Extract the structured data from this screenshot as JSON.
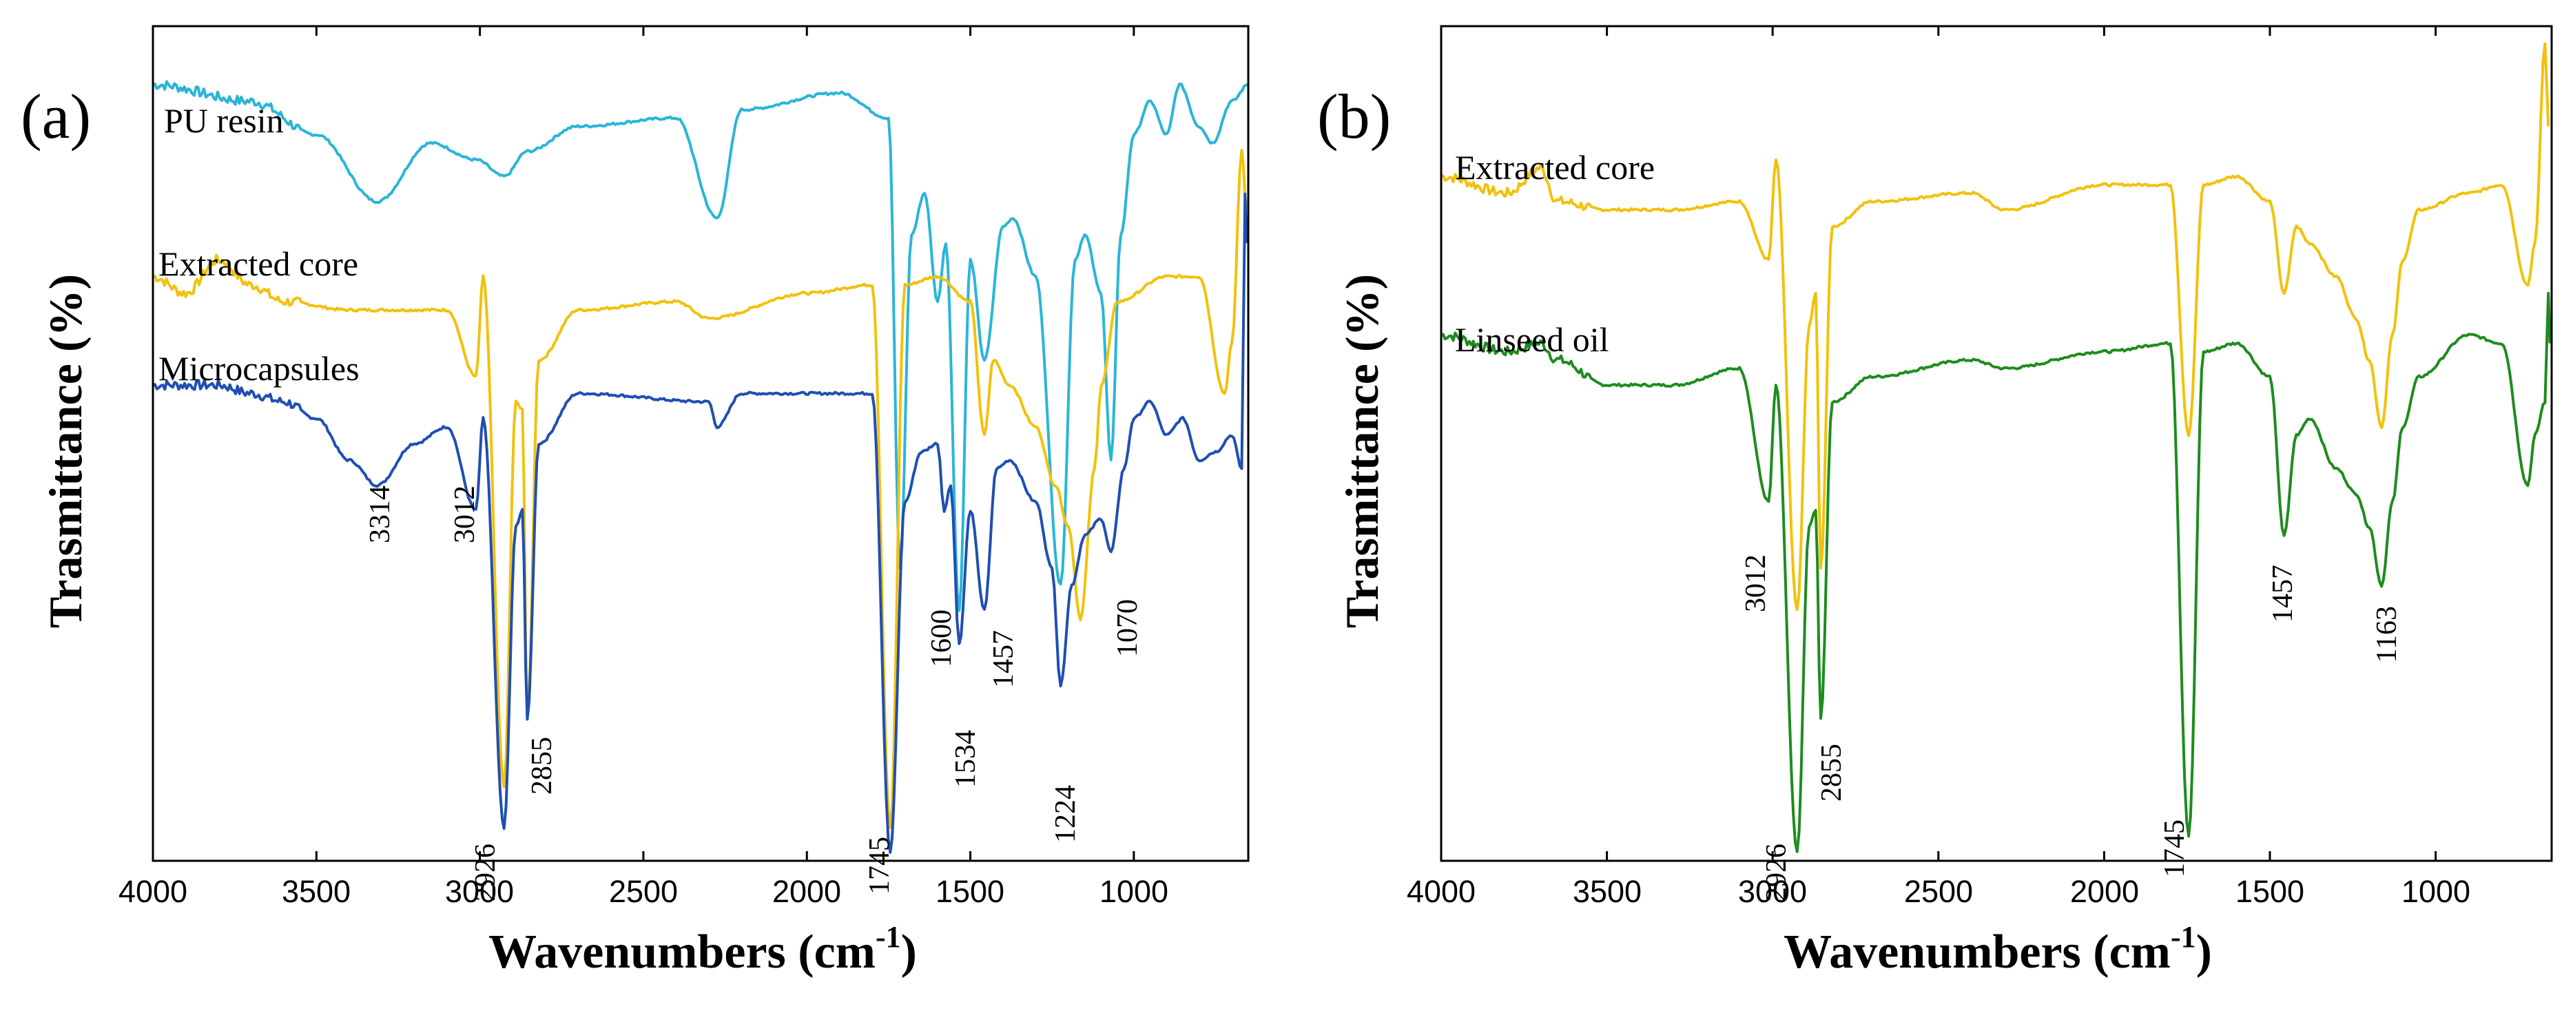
{
  "chart_data": [
    {
      "type": "line",
      "panel_label": "(a)",
      "xlabel": "Wavenumbers (cm",
      "xlabel_sup": "-1",
      "xlabel_close": ")",
      "ylabel": "Trasmittance (%)",
      "xlim": [
        4000,
        650
      ],
      "x_inverted": true,
      "xticks": [
        4000,
        3500,
        3000,
        2500,
        2000,
        1500,
        1000
      ],
      "xtick_labels": [
        "4000",
        "3500",
        "3000",
        "2500",
        "2000",
        "1500",
        "1000"
      ],
      "yticks_shown": false,
      "series": [
        {
          "name": "PU resin",
          "color": "#2ab5d8",
          "baseline": 0.93,
          "points": [
            [
              4000,
              0.93
            ],
            [
              3700,
              0.91
            ],
            [
              3500,
              0.87
            ],
            [
              3314,
              0.79
            ],
            [
              3150,
              0.86
            ],
            [
              3012,
              0.84
            ],
            [
              2926,
              0.82
            ],
            [
              2855,
              0.85
            ],
            [
              2700,
              0.88
            ],
            [
              2400,
              0.89
            ],
            [
              2275,
              0.77
            ],
            [
              2200,
              0.9
            ],
            [
              1900,
              0.92
            ],
            [
              1750,
              0.89
            ],
            [
              1715,
              0.35
            ],
            [
              1680,
              0.75
            ],
            [
              1640,
              0.8
            ],
            [
              1600,
              0.67
            ],
            [
              1575,
              0.74
            ],
            [
              1534,
              0.3
            ],
            [
              1500,
              0.72
            ],
            [
              1457,
              0.6
            ],
            [
              1400,
              0.76
            ],
            [
              1370,
              0.77
            ],
            [
              1300,
              0.7
            ],
            [
              1224,
              0.33
            ],
            [
              1180,
              0.72
            ],
            [
              1150,
              0.75
            ],
            [
              1100,
              0.68
            ],
            [
              1070,
              0.48
            ],
            [
              1040,
              0.75
            ],
            [
              1000,
              0.87
            ],
            [
              950,
              0.91
            ],
            [
              900,
              0.87
            ],
            [
              860,
              0.93
            ],
            [
              800,
              0.88
            ],
            [
              760,
              0.86
            ],
            [
              700,
              0.91
            ],
            [
              650,
              0.93
            ]
          ]
        },
        {
          "name": "Extracted core",
          "color": "#f2c10d",
          "baseline": 0.7,
          "points": [
            [
              4000,
              0.7
            ],
            [
              3900,
              0.68
            ],
            [
              3800,
              0.72
            ],
            [
              3700,
              0.69
            ],
            [
              3600,
              0.67
            ],
            [
              3400,
              0.66
            ],
            [
              3200,
              0.66
            ],
            [
              3100,
              0.66
            ],
            [
              3012,
              0.58
            ],
            [
              2990,
              0.7
            ],
            [
              2926,
              0.09
            ],
            [
              2890,
              0.55
            ],
            [
              2870,
              0.54
            ],
            [
              2855,
              0.17
            ],
            [
              2820,
              0.6
            ],
            [
              2700,
              0.66
            ],
            [
              2400,
              0.67
            ],
            [
              2300,
              0.65
            ],
            [
              2000,
              0.68
            ],
            [
              1800,
              0.69
            ],
            [
              1745,
              0.04
            ],
            [
              1700,
              0.69
            ],
            [
              1600,
              0.7
            ],
            [
              1500,
              0.67
            ],
            [
              1457,
              0.51
            ],
            [
              1430,
              0.6
            ],
            [
              1380,
              0.57
            ],
            [
              1300,
              0.52
            ],
            [
              1240,
              0.45
            ],
            [
              1200,
              0.4
            ],
            [
              1163,
              0.29
            ],
            [
              1120,
              0.47
            ],
            [
              1100,
              0.57
            ],
            [
              1050,
              0.67
            ],
            [
              900,
              0.7
            ],
            [
              800,
              0.7
            ],
            [
              722,
              0.56
            ],
            [
              700,
              0.62
            ],
            [
              670,
              0.85
            ],
            [
              655,
              0.78
            ]
          ]
        },
        {
          "name": "Microcapsules",
          "color": "#1f4fb3",
          "baseline": 0.57,
          "points": [
            [
              4000,
              0.57
            ],
            [
              3800,
              0.57
            ],
            [
              3700,
              0.56
            ],
            [
              3600,
              0.55
            ],
            [
              3500,
              0.53
            ],
            [
              3400,
              0.48
            ],
            [
              3314,
              0.45
            ],
            [
              3200,
              0.5
            ],
            [
              3100,
              0.52
            ],
            [
              3012,
              0.42
            ],
            [
              2990,
              0.53
            ],
            [
              2926,
              0.04
            ],
            [
              2890,
              0.4
            ],
            [
              2870,
              0.42
            ],
            [
              2855,
              0.17
            ],
            [
              2820,
              0.5
            ],
            [
              2700,
              0.56
            ],
            [
              2300,
              0.55
            ],
            [
              2275,
              0.52
            ],
            [
              2200,
              0.56
            ],
            [
              1800,
              0.56
            ],
            [
              1745,
              0.01
            ],
            [
              1700,
              0.43
            ],
            [
              1650,
              0.49
            ],
            [
              1600,
              0.5
            ],
            [
              1580,
              0.42
            ],
            [
              1560,
              0.45
            ],
            [
              1534,
              0.26
            ],
            [
              1500,
              0.42
            ],
            [
              1457,
              0.3
            ],
            [
              1420,
              0.47
            ],
            [
              1380,
              0.48
            ],
            [
              1300,
              0.43
            ],
            [
              1250,
              0.35
            ],
            [
              1224,
              0.21
            ],
            [
              1190,
              0.33
            ],
            [
              1150,
              0.39
            ],
            [
              1100,
              0.41
            ],
            [
              1070,
              0.37
            ],
            [
              1030,
              0.47
            ],
            [
              1000,
              0.53
            ],
            [
              950,
              0.55
            ],
            [
              900,
              0.51
            ],
            [
              850,
              0.53
            ],
            [
              800,
              0.48
            ],
            [
              750,
              0.49
            ],
            [
              700,
              0.51
            ],
            [
              670,
              0.47
            ],
            [
              660,
              0.8
            ],
            [
              655,
              0.74
            ]
          ]
        }
      ],
      "series_labels": [
        "PU resin",
        "Extracted core",
        "Microcapsules"
      ],
      "peak_annotations": [
        "3314",
        "3012",
        "2926",
        "2855",
        "1745",
        "1600",
        "1534",
        "1457",
        "1224",
        "1070"
      ]
    },
    {
      "type": "line",
      "panel_label": "(b)",
      "xlabel": "Wavenumbers (cm",
      "xlabel_sup": "-1",
      "xlabel_close": ")",
      "ylabel": "Trasmittance (%)",
      "xlim": [
        4000,
        650
      ],
      "x_inverted": true,
      "xticks": [
        4000,
        3500,
        3000,
        2500,
        2000,
        1500,
        1000
      ],
      "xtick_labels": [
        "4000",
        "3500",
        "3000",
        "2500",
        "2000",
        "1500",
        "1000"
      ],
      "yticks_shown": false,
      "series": [
        {
          "name": "Extracted core",
          "color": "#f2c10d",
          "baseline": 0.82,
          "points": [
            [
              4000,
              0.82
            ],
            [
              3800,
              0.8
            ],
            [
              3700,
              0.83
            ],
            [
              3650,
              0.79
            ],
            [
              3500,
              0.78
            ],
            [
              3300,
              0.78
            ],
            [
              3100,
              0.79
            ],
            [
              3012,
              0.72
            ],
            [
              2990,
              0.84
            ],
            [
              2926,
              0.3
            ],
            [
              2890,
              0.64
            ],
            [
              2870,
              0.68
            ],
            [
              2855,
              0.35
            ],
            [
              2820,
              0.76
            ],
            [
              2700,
              0.79
            ],
            [
              2400,
              0.8
            ],
            [
              2300,
              0.78
            ],
            [
              2000,
              0.81
            ],
            [
              1800,
              0.81
            ],
            [
              1745,
              0.51
            ],
            [
              1700,
              0.81
            ],
            [
              1600,
              0.82
            ],
            [
              1500,
              0.79
            ],
            [
              1457,
              0.68
            ],
            [
              1420,
              0.76
            ],
            [
              1380,
              0.74
            ],
            [
              1300,
              0.7
            ],
            [
              1240,
              0.65
            ],
            [
              1200,
              0.6
            ],
            [
              1163,
              0.52
            ],
            [
              1130,
              0.63
            ],
            [
              1100,
              0.72
            ],
            [
              1050,
              0.78
            ],
            [
              900,
              0.8
            ],
            [
              800,
              0.81
            ],
            [
              722,
              0.69
            ],
            [
              700,
              0.74
            ],
            [
              670,
              0.98
            ],
            [
              660,
              0.88
            ]
          ]
        },
        {
          "name": "Linseed oil",
          "color": "#1e8c1e",
          "baseline": 0.63,
          "points": [
            [
              4000,
              0.63
            ],
            [
              3800,
              0.61
            ],
            [
              3700,
              0.62
            ],
            [
              3650,
              0.6
            ],
            [
              3500,
              0.57
            ],
            [
              3300,
              0.57
            ],
            [
              3100,
              0.59
            ],
            [
              3012,
              0.43
            ],
            [
              2990,
              0.57
            ],
            [
              2926,
              0.01
            ],
            [
              2890,
              0.4
            ],
            [
              2870,
              0.42
            ],
            [
              2855,
              0.17
            ],
            [
              2820,
              0.55
            ],
            [
              2700,
              0.58
            ],
            [
              2400,
              0.6
            ],
            [
              2300,
              0.59
            ],
            [
              2000,
              0.61
            ],
            [
              1800,
              0.62
            ],
            [
              1745,
              0.03
            ],
            [
              1700,
              0.61
            ],
            [
              1600,
              0.62
            ],
            [
              1500,
              0.58
            ],
            [
              1457,
              0.39
            ],
            [
              1420,
              0.51
            ],
            [
              1380,
              0.53
            ],
            [
              1300,
              0.47
            ],
            [
              1240,
              0.44
            ],
            [
              1200,
              0.4
            ],
            [
              1163,
              0.33
            ],
            [
              1130,
              0.43
            ],
            [
              1100,
              0.52
            ],
            [
              1050,
              0.58
            ],
            [
              900,
              0.63
            ],
            [
              800,
              0.62
            ],
            [
              722,
              0.45
            ],
            [
              700,
              0.51
            ],
            [
              670,
              0.55
            ],
            [
              660,
              0.68
            ],
            [
              655,
              0.62
            ]
          ]
        }
      ],
      "series_labels": [
        "Extracted core",
        "Linseed oil"
      ],
      "peak_annotations": [
        "3012",
        "2926",
        "2855",
        "1745",
        "1457",
        "1163"
      ]
    }
  ]
}
